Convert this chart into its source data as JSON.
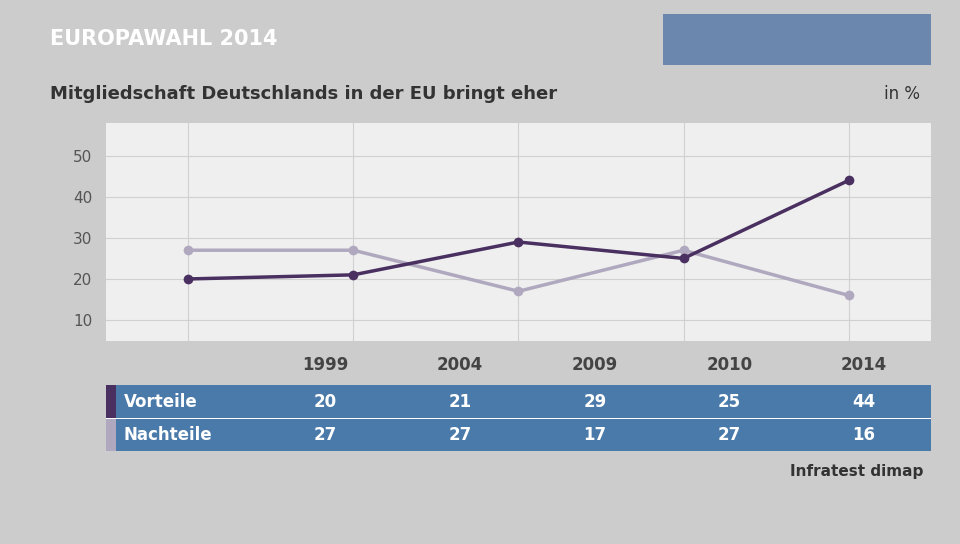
{
  "title_banner": "EUROPAWAHL 2014",
  "title_banner_bg": "#1a3a6b",
  "title_banner_color": "#ffffff",
  "subtitle": "Mitgliedschaft Deutschlands in der EU bringt eher",
  "subtitle_right": "in %",
  "subtitle_bg": "#f5f5f5",
  "subtitle_color": "#333333",
  "background_color": "#cccccc",
  "chart_bg": "#efefef",
  "years": [
    "1999",
    "2004",
    "2009",
    "2010",
    "2014"
  ],
  "x_positions": [
    0,
    1,
    2,
    3,
    4
  ],
  "vorteile_values": [
    20,
    21,
    29,
    25,
    44
  ],
  "nachteile_values": [
    27,
    27,
    17,
    27,
    16
  ],
  "vorteile_color": "#4a3060",
  "nachteile_color": "#b0a8bf",
  "vorteile_label": "Vorteile",
  "nachteile_label": "Nachteile",
  "table_bg": "#4a7aaa",
  "table_header_bg": "#e8e8e8",
  "table_text_color": "#ffffff",
  "table_header_color": "#444444",
  "ylim": [
    5,
    58
  ],
  "yticks": [
    10,
    20,
    30,
    40,
    50
  ],
  "source": "Infratest dimap",
  "marker_size": 7,
  "line_width": 2.5,
  "fig_width": 9.6,
  "fig_height": 5.44
}
